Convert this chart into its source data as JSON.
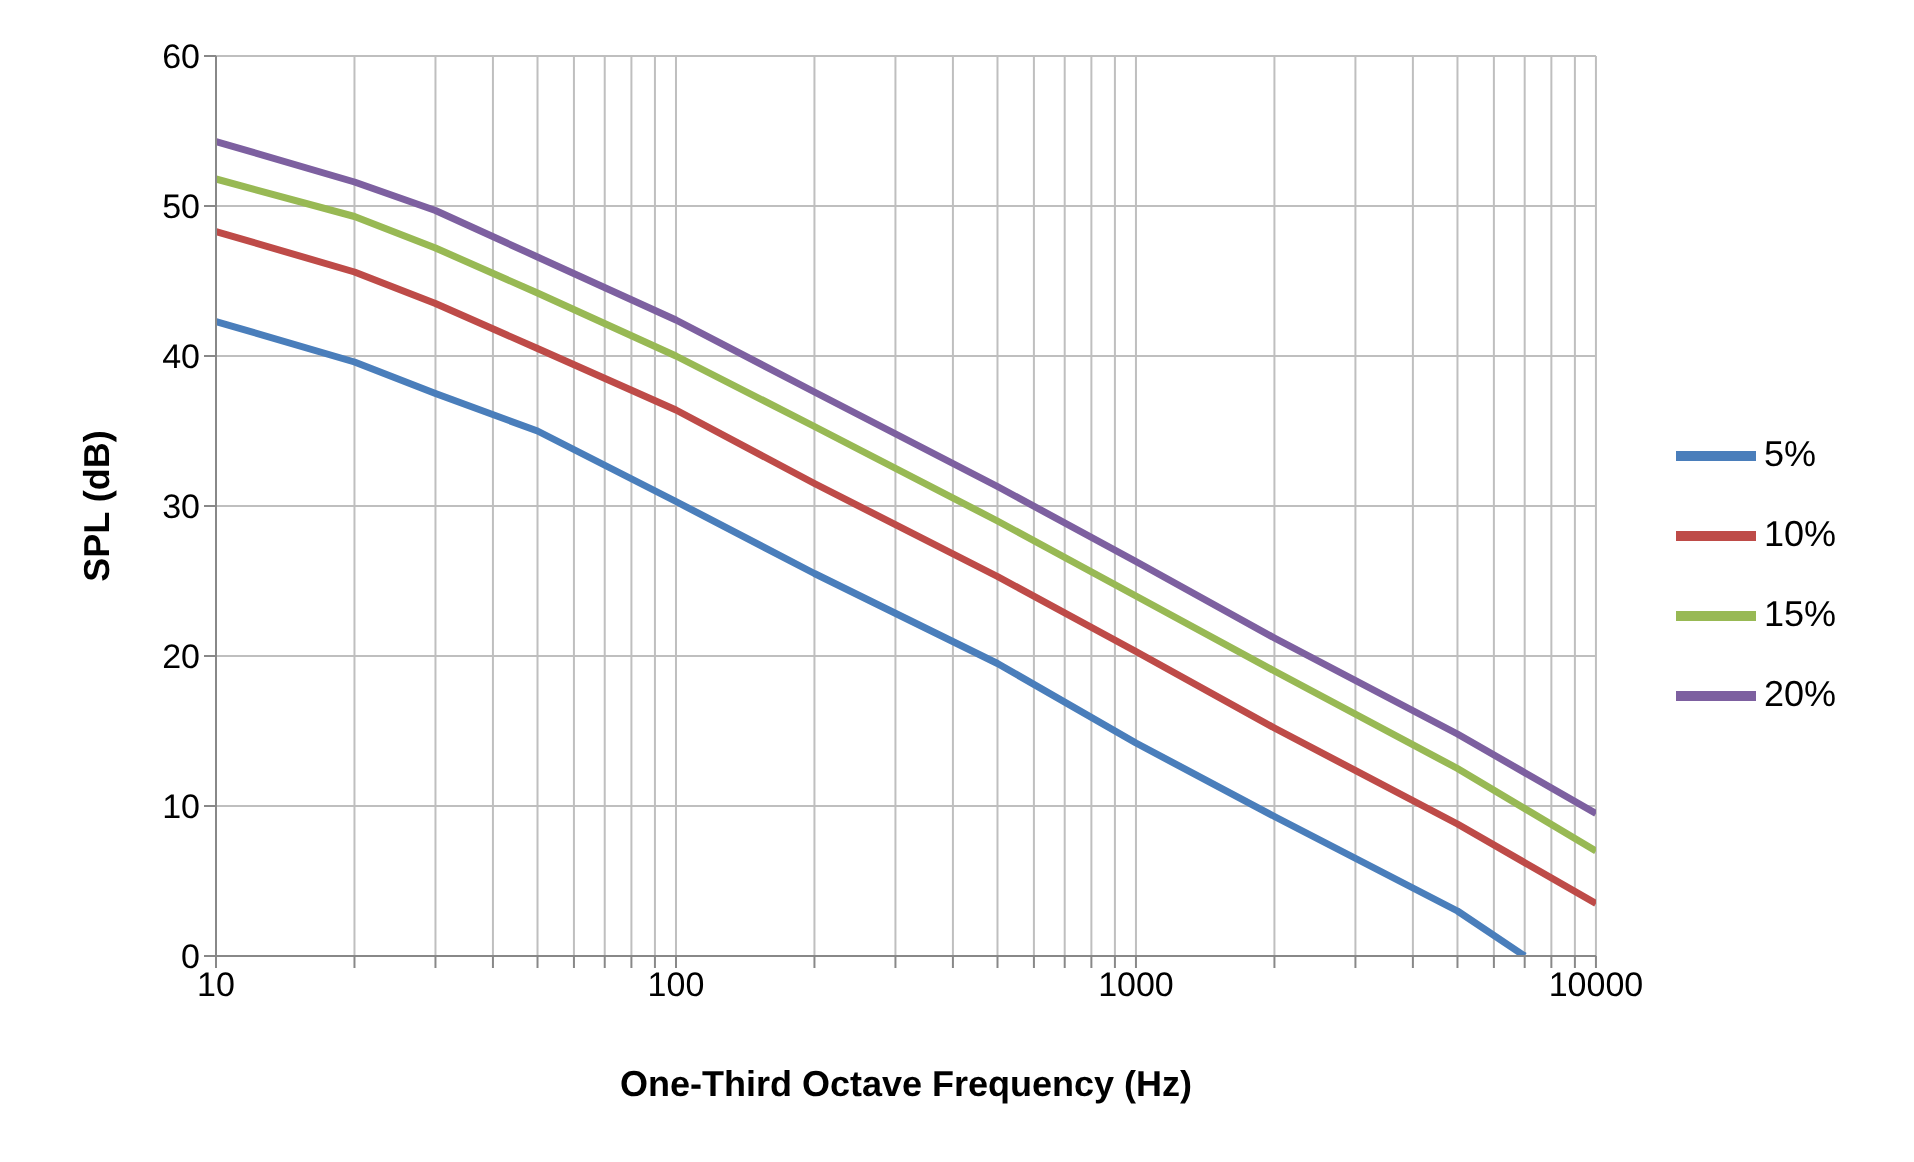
{
  "chart_data": {
    "type": "line",
    "xlabel": "One-Third Octave Frequency (Hz)",
    "ylabel": "SPL (dB)",
    "x": [
      10,
      20,
      30,
      50,
      100,
      200,
      500,
      1000,
      2000,
      5000,
      10000
    ],
    "series": [
      {
        "name": "5%",
        "color": "#4a7ebb",
        "x": [
          10,
          20,
          30,
          50,
          100,
          200,
          500,
          1000,
          2000,
          5000,
          7000
        ],
        "values": [
          42.3,
          39.6,
          37.5,
          35,
          30.3,
          25.5,
          19.5,
          14.2,
          9.3,
          3,
          0
        ]
      },
      {
        "name": "10%",
        "color": "#be4b48",
        "values": [
          48.3,
          45.6,
          43.5,
          40.5,
          36.4,
          31.5,
          25.3,
          20.3,
          15.2,
          8.8,
          3.5
        ]
      },
      {
        "name": "15%",
        "color": "#98b954",
        "values": [
          51.8,
          49.3,
          47.2,
          44.2,
          40,
          35.3,
          29,
          24,
          19,
          12.5,
          7
        ]
      },
      {
        "name": "20%",
        "color": "#7d60a0",
        "values": [
          54.3,
          51.6,
          49.7,
          46.6,
          42.4,
          37.6,
          31.3,
          26.3,
          21.2,
          14.8,
          9.5
        ]
      }
    ],
    "log": "x",
    "xlim": [
      10,
      10000
    ],
    "xticks": [
      10,
      {
        "value": 20,
        "label": null
      },
      {
        "value": 30,
        "label": null
      },
      {
        "value": 40,
        "label": null
      },
      {
        "value": 50,
        "label": null
      },
      {
        "value": 60,
        "label": null
      },
      {
        "value": 70,
        "label": null
      },
      {
        "value": 80,
        "label": null
      },
      {
        "value": 90,
        "label": null
      },
      100,
      {
        "value": 200,
        "label": null
      },
      {
        "value": 300,
        "label": null
      },
      {
        "value": 400,
        "label": null
      },
      {
        "value": 500,
        "label": null
      },
      {
        "value": 600,
        "label": null
      },
      {
        "value": 700,
        "label": null
      },
      {
        "value": 800,
        "label": null
      },
      {
        "value": 900,
        "label": null
      },
      1000,
      {
        "value": 2000,
        "label": null
      },
      {
        "value": 3000,
        "label": null
      },
      {
        "value": 4000,
        "label": null
      },
      {
        "value": 5000,
        "label": null
      },
      {
        "value": 6000,
        "label": null
      },
      {
        "value": 7000,
        "label": null
      },
      {
        "value": 8000,
        "label": null
      },
      {
        "value": 9000,
        "label": null
      },
      10000
    ],
    "ylim": [
      0,
      60
    ],
    "yticks": [
      0,
      10,
      20,
      30,
      40,
      50,
      60
    ],
    "grid": true,
    "legend": "right"
  }
}
